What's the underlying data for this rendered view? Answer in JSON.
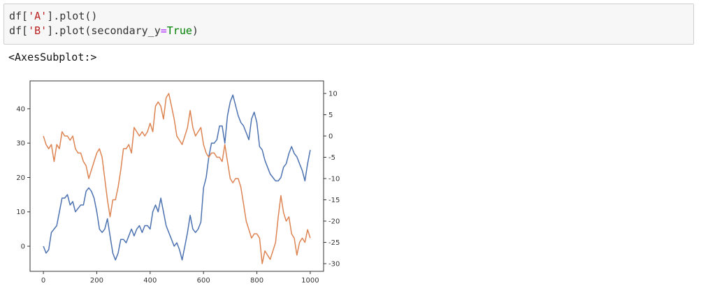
{
  "cell": {
    "code_line1": {
      "prefix": "df[",
      "string": "'A'",
      "suffix": "].plot()"
    },
    "code_line2": {
      "prefix": "df[",
      "string": "'B'",
      "mid": "].plot(secondary_y",
      "op": "=",
      "kw": "True",
      "suffix": ")"
    }
  },
  "output_text": "<AxesSubplot:>",
  "chart_data": {
    "type": "line",
    "title": "",
    "xlabel": "",
    "ylabel": "",
    "xlim": [
      -50,
      1050
    ],
    "ylim": [
      -7.3,
      48.1
    ],
    "y2lim": [
      -31.8,
      12.95
    ],
    "xticks": [
      0,
      200,
      400,
      600,
      800,
      1000
    ],
    "yticks": [
      0,
      10,
      20,
      30,
      40
    ],
    "y2ticks": [
      -30,
      -25,
      -20,
      -15,
      -10,
      -5,
      0,
      5,
      10
    ],
    "grid": false,
    "legend": "none",
    "x": [
      0,
      10,
      20,
      30,
      40,
      50,
      60,
      70,
      80,
      90,
      100,
      110,
      120,
      130,
      140,
      150,
      160,
      170,
      180,
      190,
      200,
      210,
      220,
      230,
      240,
      250,
      260,
      270,
      280,
      290,
      300,
      310,
      320,
      330,
      340,
      350,
      360,
      370,
      380,
      390,
      400,
      410,
      420,
      430,
      440,
      450,
      460,
      470,
      480,
      490,
      500,
      510,
      520,
      530,
      540,
      550,
      560,
      570,
      580,
      590,
      600,
      610,
      620,
      630,
      640,
      650,
      660,
      670,
      680,
      690,
      700,
      710,
      720,
      730,
      740,
      750,
      760,
      770,
      780,
      790,
      800,
      810,
      820,
      830,
      840,
      850,
      860,
      870,
      880,
      890,
      900,
      910,
      920,
      930,
      940,
      950,
      960,
      970,
      980,
      990,
      1000
    ],
    "series": [
      {
        "axis": "left",
        "color": "#4c72b0",
        "values": [
          0,
          -2,
          -1,
          4,
          5,
          6,
          10,
          14,
          14,
          15,
          12,
          13,
          10,
          11,
          12,
          12,
          16,
          17,
          16,
          14,
          10,
          5,
          4,
          5,
          8,
          3,
          -2,
          -4,
          -2,
          2,
          2,
          1,
          3,
          5,
          3,
          5,
          6,
          4,
          6,
          6,
          5,
          10,
          12,
          10,
          14,
          10,
          6,
          4,
          2,
          0,
          1,
          -1,
          -4,
          0,
          4,
          9,
          5,
          4,
          5,
          7,
          17,
          20,
          26,
          30,
          30,
          31,
          35,
          35,
          30,
          38,
          42,
          44,
          41,
          38,
          36,
          35,
          33,
          31,
          37,
          39,
          36,
          29,
          28,
          25,
          23,
          21,
          20,
          19,
          19,
          20,
          23,
          24,
          27,
          29,
          27,
          26,
          24,
          22,
          19,
          24,
          28
        ]
      },
      {
        "axis": "right",
        "color": "#dd8452",
        "values": [
          0,
          -2,
          -3,
          -2,
          -6,
          -2,
          -3,
          1,
          0,
          0,
          -1,
          0,
          -3,
          -4,
          -4,
          -6,
          -7,
          -10,
          -8,
          -6,
          -4,
          -3,
          -5,
          -10,
          -15,
          -19,
          -15,
          -15,
          -12,
          -8,
          -3,
          -3,
          -2,
          -4,
          2,
          1,
          0,
          1,
          0,
          1,
          3,
          1,
          7,
          8,
          7,
          4,
          9,
          10,
          7,
          4,
          0,
          -1,
          -2,
          0,
          2,
          6,
          2,
          0,
          1,
          2,
          -2,
          -4,
          -5,
          -4,
          -4,
          -5,
          -5,
          -6,
          -2,
          -6,
          -10,
          -11,
          -10,
          -10,
          -12,
          -16,
          -20,
          -22,
          -24,
          -23,
          -23,
          -24,
          -30,
          -27,
          -28,
          -29,
          -27,
          -25,
          -19,
          -14,
          -18,
          -20,
          -19,
          -23,
          -24,
          -28,
          -25,
          -24,
          -25,
          -22,
          -24
        ]
      }
    ]
  }
}
